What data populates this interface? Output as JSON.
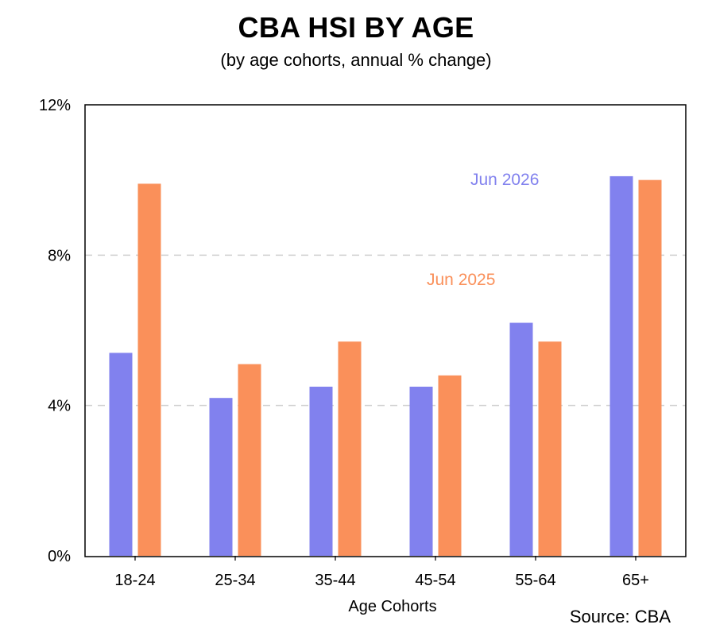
{
  "title": "CBA HSI BY AGE",
  "subtitle": "(by age cohorts, annual % change)",
  "source": "Source: CBA",
  "chart_data": {
    "type": "bar",
    "title": "CBA HSI BY AGE",
    "subtitle": "(by age cohorts, annual % change)",
    "xlabel": "Age Cohorts",
    "ylabel": "",
    "ylim": [
      0,
      12
    ],
    "yticks": [
      0,
      4,
      8,
      12
    ],
    "ytick_labels": [
      "0%",
      "4%",
      "8%",
      "12%"
    ],
    "grid": "horizontal dashed",
    "categories": [
      "18-24",
      "25-34",
      "35-44",
      "45-54",
      "55-64",
      "65+"
    ],
    "series": [
      {
        "name": "Jun 2026",
        "color": "#8181ee",
        "values": [
          5.4,
          4.2,
          4.5,
          4.5,
          6.2,
          10.1
        ]
      },
      {
        "name": "Jun 2025",
        "color": "#fa905a",
        "values": [
          9.9,
          5.1,
          5.7,
          4.8,
          5.7,
          10.0
        ]
      }
    ]
  }
}
